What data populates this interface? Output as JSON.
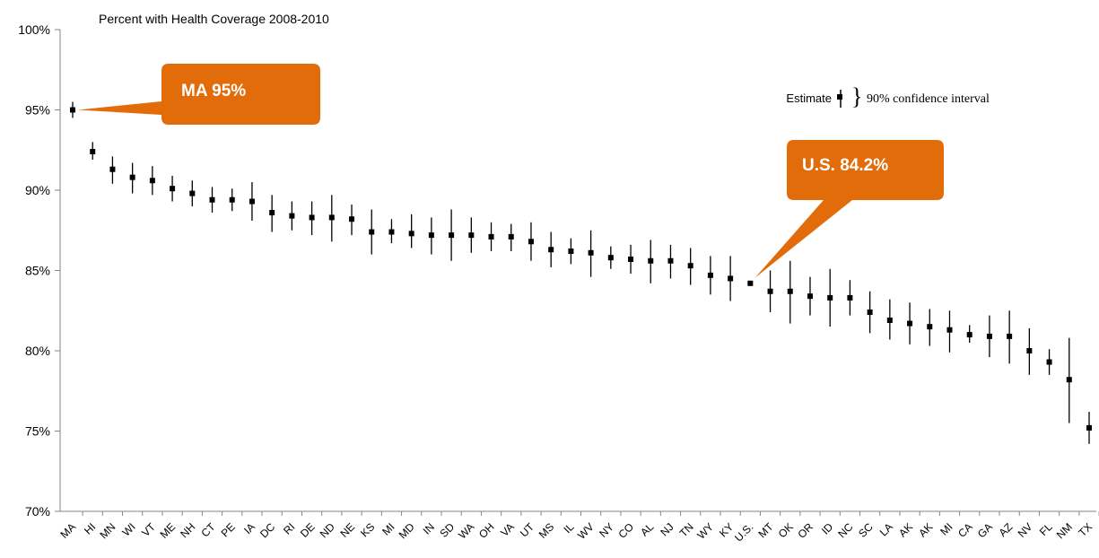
{
  "chart_data": {
    "type": "scatter",
    "title": "Percent with Health Coverage 2008-2010",
    "ylim": [
      70,
      100
    ],
    "y_ticks": [
      "70%",
      "75%",
      "80%",
      "85%",
      "90%",
      "95%",
      "100%"
    ],
    "y_tick_values": [
      70,
      75,
      80,
      85,
      90,
      95,
      100
    ],
    "grid": false,
    "marker_color": "#000000",
    "callout_color": "#E36C0A",
    "legend": {
      "estimate_label": "Estimate",
      "ci_label": "90% confidence interval",
      "placement": "top-right"
    },
    "callouts": [
      {
        "text": "MA 95%",
        "target": "MA"
      },
      {
        "text": "U.S. 84.2%",
        "target": "U.S."
      }
    ],
    "categories": [
      "MA",
      "HI",
      "MN",
      "WI",
      "VT",
      "ME",
      "NH",
      "CT",
      "PE",
      "IA",
      "DC",
      "RI",
      "DE",
      "ND",
      "NE",
      "KS",
      "MI",
      "MD",
      "IN",
      "SD",
      "WA",
      "OH",
      "VA",
      "UT",
      "MS",
      "IL",
      "WV",
      "NY",
      "CO",
      "AL",
      "NJ",
      "TN",
      "WY",
      "KY",
      "U.S.",
      "MT",
      "OK",
      "OR",
      "ID",
      "NC",
      "SC",
      "LA",
      "AK",
      "AK",
      "MI",
      "CA",
      "GA",
      "AZ",
      "NV",
      "FL",
      "NM",
      "TX"
    ],
    "estimates": [
      95.0,
      92.4,
      91.3,
      90.8,
      90.6,
      90.1,
      89.8,
      89.4,
      89.4,
      89.3,
      88.6,
      88.4,
      88.3,
      88.3,
      88.2,
      87.4,
      87.4,
      87.3,
      87.2,
      87.2,
      87.2,
      87.1,
      87.1,
      86.8,
      86.3,
      86.2,
      86.1,
      85.8,
      85.7,
      85.6,
      85.6,
      85.3,
      84.7,
      84.5,
      84.2,
      83.7,
      83.7,
      83.4,
      83.3,
      83.3,
      82.4,
      81.9,
      81.7,
      81.5,
      81.3,
      81.0,
      80.9,
      80.9,
      80.0,
      79.3,
      78.2,
      75.2
    ],
    "ci_low": [
      94.5,
      91.9,
      90.4,
      89.8,
      89.7,
      89.3,
      89.0,
      88.6,
      88.7,
      88.1,
      87.4,
      87.5,
      87.2,
      86.8,
      87.2,
      86.0,
      86.7,
      86.4,
      86.0,
      85.6,
      86.1,
      86.2,
      86.2,
      85.6,
      85.2,
      85.4,
      84.6,
      85.1,
      84.8,
      84.2,
      84.5,
      84.1,
      83.5,
      83.1,
      84.2,
      82.4,
      81.7,
      82.2,
      81.5,
      82.2,
      81.1,
      80.7,
      80.4,
      80.3,
      79.9,
      80.5,
      79.6,
      79.2,
      78.5,
      78.5,
      75.5,
      74.2
    ],
    "ci_high": [
      95.5,
      93.0,
      92.1,
      91.7,
      91.5,
      90.9,
      90.6,
      90.2,
      90.1,
      90.5,
      89.7,
      89.3,
      89.3,
      89.7,
      89.1,
      88.8,
      88.2,
      88.5,
      88.3,
      88.8,
      88.3,
      88.0,
      87.9,
      88.0,
      87.4,
      87.0,
      87.5,
      86.5,
      86.6,
      86.9,
      86.6,
      86.4,
      85.9,
      85.9,
      84.2,
      85.0,
      85.6,
      84.6,
      85.1,
      84.4,
      83.7,
      83.2,
      83.0,
      82.6,
      82.5,
      81.6,
      82.2,
      82.5,
      81.4,
      80.1,
      80.8,
      76.2
    ]
  }
}
